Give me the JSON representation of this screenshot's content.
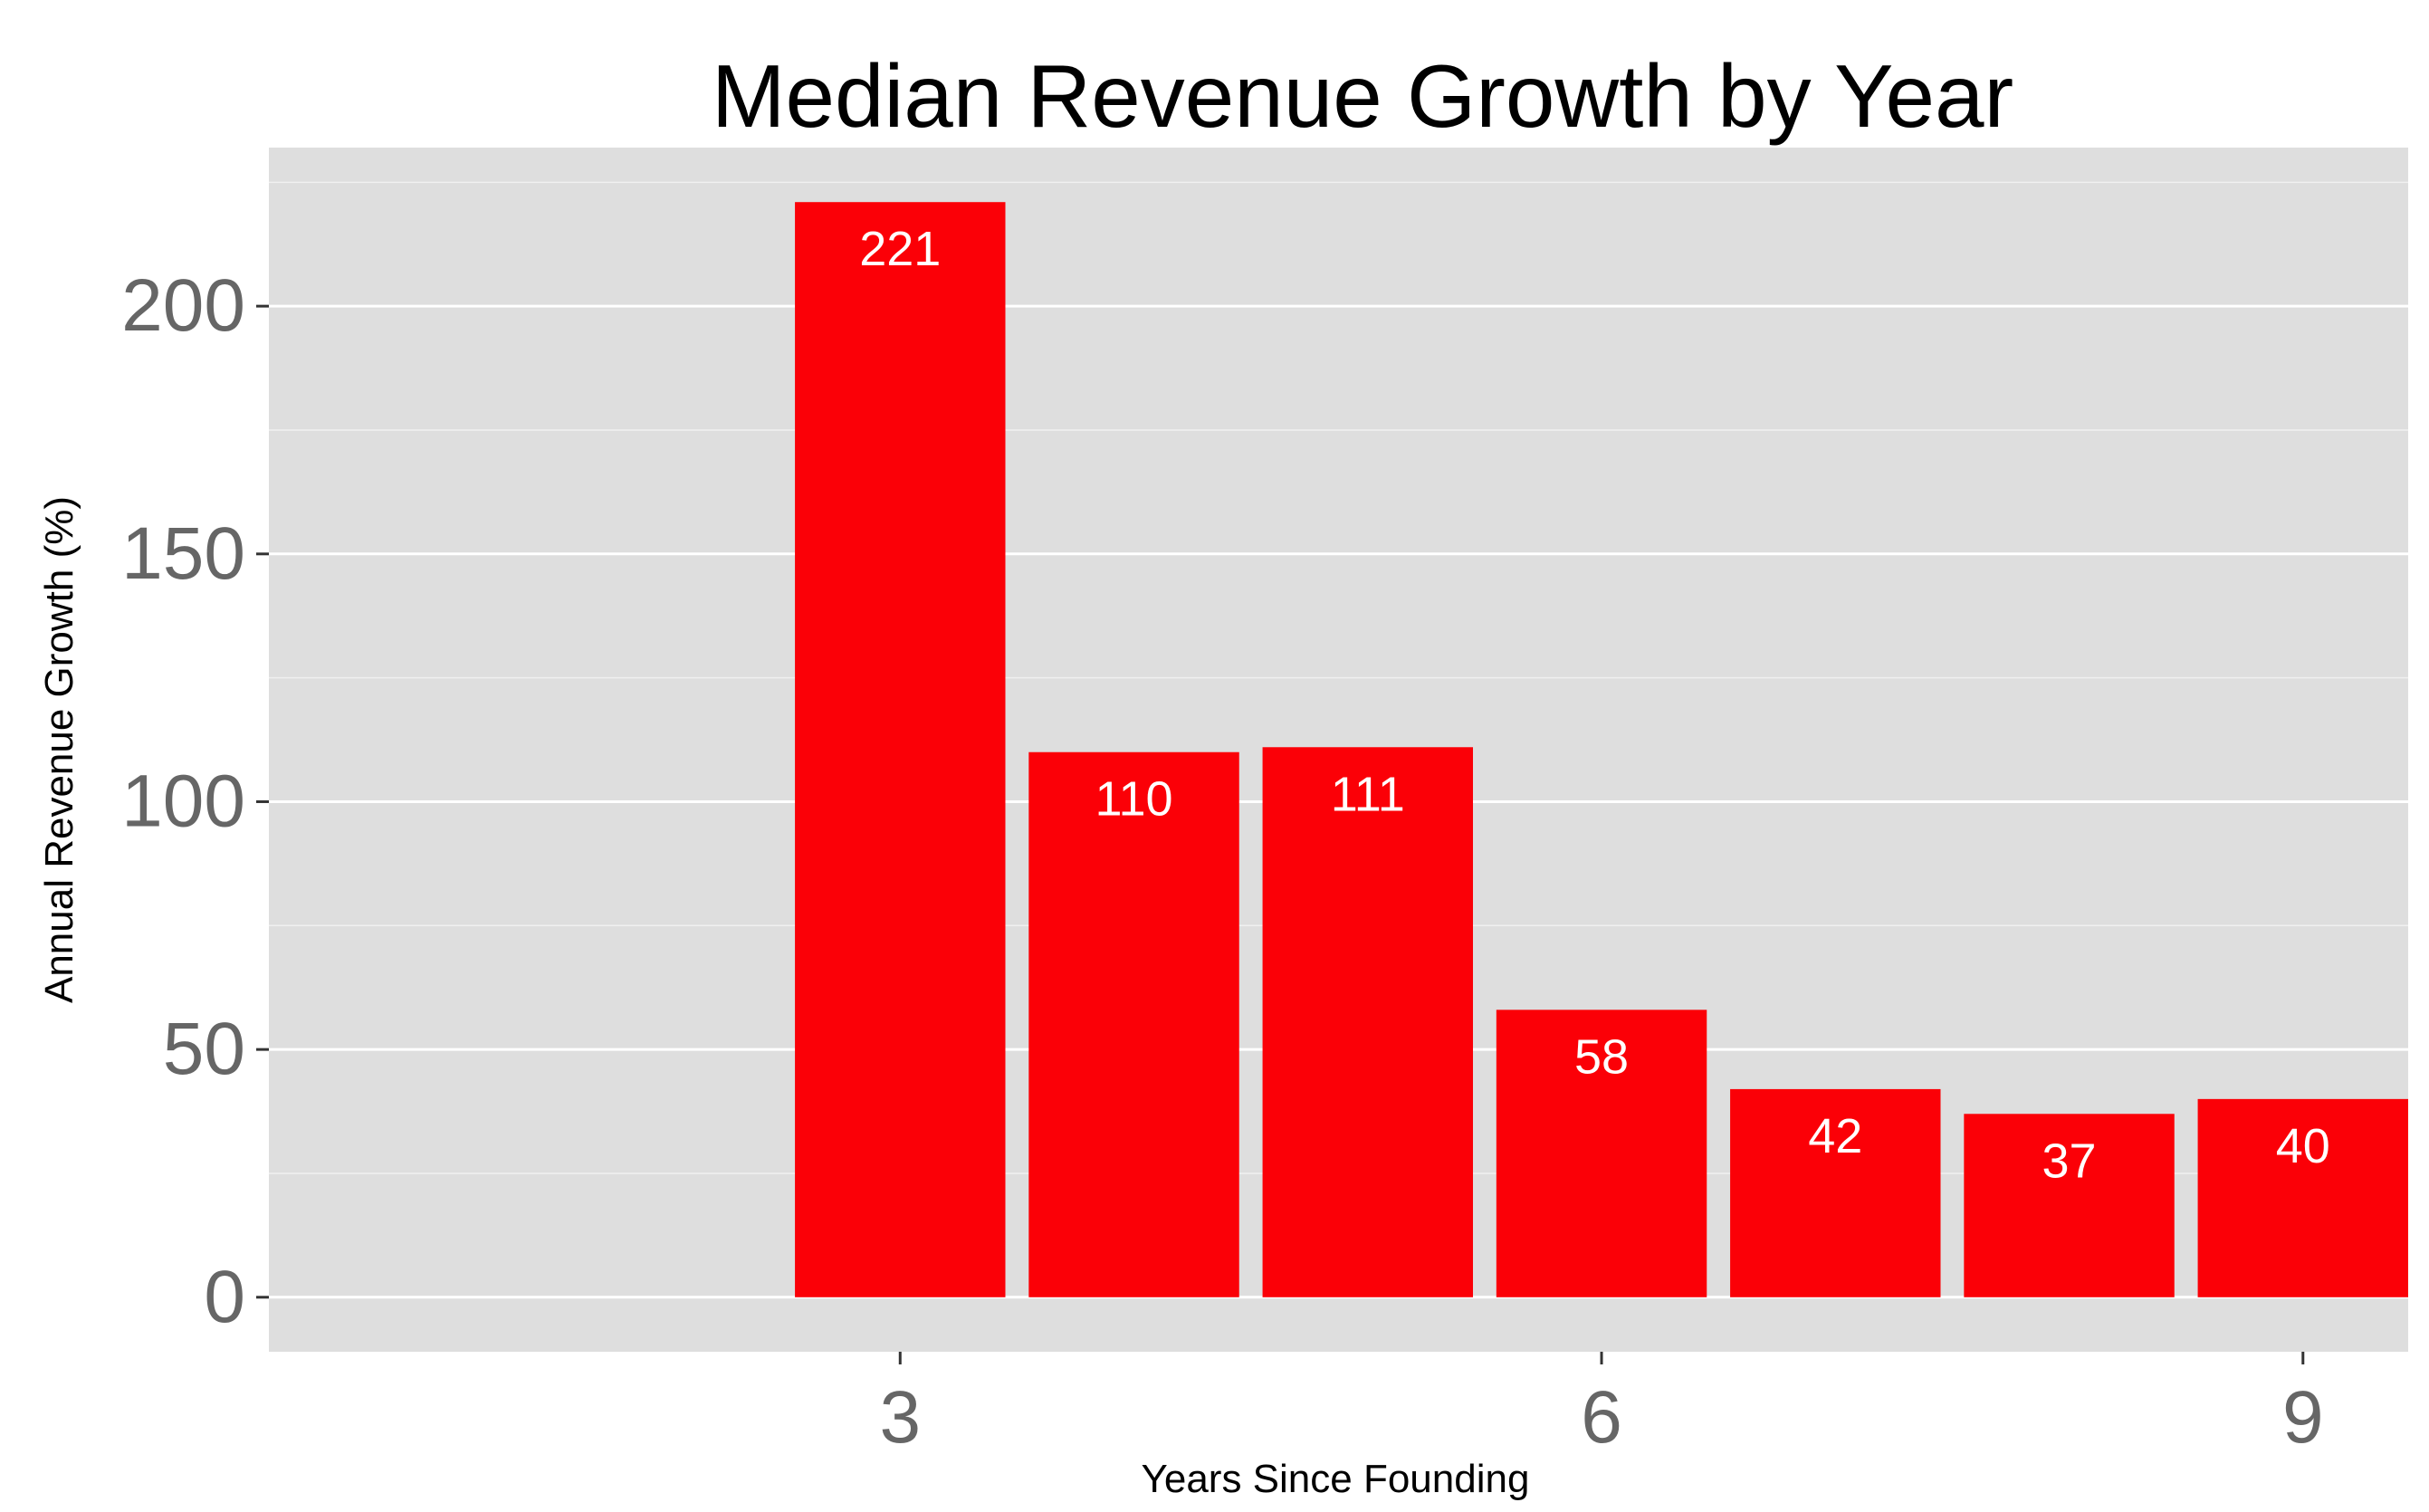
{
  "chart_data": {
    "type": "bar",
    "title": "Median Revenue Growth by Year",
    "xlabel": "Years Since Founding",
    "ylabel": "Annual Revenue Growth (%)",
    "x": [
      3,
      4,
      5,
      6,
      7,
      8,
      9
    ],
    "values": [
      221,
      110,
      111,
      58,
      42,
      37,
      40
    ],
    "data_labels": [
      "221",
      "110",
      "111",
      "58",
      "42",
      "37",
      "40"
    ],
    "xlim": [
      0.3,
      9.45
    ],
    "ylim": [
      -11,
      232
    ],
    "x_ticks": [
      3,
      6,
      9
    ],
    "x_tick_labels": [
      "3",
      "6",
      "9"
    ],
    "y_ticks": [
      0,
      50,
      100,
      150,
      200
    ],
    "y_tick_labels": [
      "0",
      "50",
      "100",
      "150",
      "200"
    ],
    "bar_color": "#fb0007",
    "panel_color": "#dedede",
    "grid_color": "#ffffff",
    "grid": true,
    "legend": "none"
  }
}
